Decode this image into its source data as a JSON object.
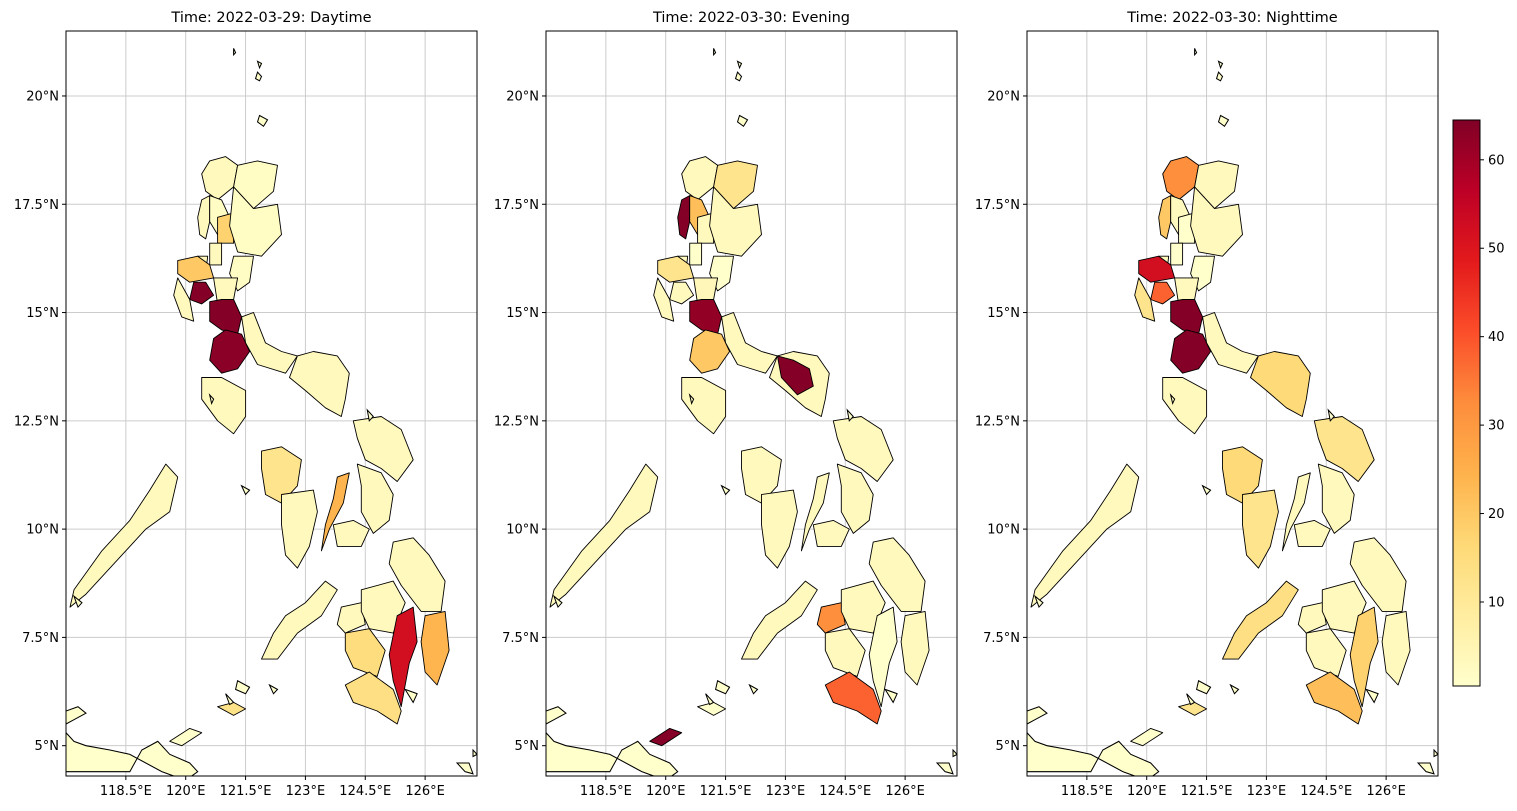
{
  "panels": [
    {
      "title": "Time: 2022-03-29: Daytime",
      "regions": [
        {
          "name": "ilocos-norte",
          "value": 3
        },
        {
          "name": "cagayan-ne",
          "value": 2
        },
        {
          "name": "ilocos-sur",
          "value": 3
        },
        {
          "name": "abra",
          "value": 2
        },
        {
          "name": "la-union",
          "value": 4
        },
        {
          "name": "mountain-prov",
          "value": 18
        },
        {
          "name": "benguet",
          "value": 3
        },
        {
          "name": "pangasinan",
          "value": 20
        },
        {
          "name": "isabela",
          "value": 2
        },
        {
          "name": "aurora",
          "value": 2
        },
        {
          "name": "tarlac",
          "value": 64
        },
        {
          "name": "zambales",
          "value": 3
        },
        {
          "name": "bulacan",
          "value": 64
        },
        {
          "name": "nueva-ecija",
          "value": 3
        },
        {
          "name": "manila-calabarzon",
          "value": 63
        },
        {
          "name": "quezon",
          "value": 3
        },
        {
          "name": "bicol",
          "value": 3
        },
        {
          "name": "mindoro",
          "value": 3
        },
        {
          "name": "panay",
          "value": 12
        },
        {
          "name": "negros",
          "value": 3
        },
        {
          "name": "cebu",
          "value": 24
        },
        {
          "name": "samar",
          "value": 3
        },
        {
          "name": "leyte",
          "value": 3
        },
        {
          "name": "bohol",
          "value": 3
        },
        {
          "name": "palawan",
          "value": 3
        },
        {
          "name": "zamboanga",
          "value": 3
        },
        {
          "name": "lanao",
          "value": 3
        },
        {
          "name": "bukidnon",
          "value": 3
        },
        {
          "name": "cotabato",
          "value": 15
        },
        {
          "name": "davao-city",
          "value": 52
        },
        {
          "name": "davao-oriental",
          "value": 24
        },
        {
          "name": "south-mindanao",
          "value": 14
        },
        {
          "name": "caraga",
          "value": 3
        },
        {
          "name": "sulu",
          "value": 13
        }
      ]
    },
    {
      "title": "Time: 2022-03-30: Evening",
      "regions": [
        {
          "name": "ilocos-norte",
          "value": 3
        },
        {
          "name": "cagayan-ne",
          "value": 12
        },
        {
          "name": "ilocos-sur",
          "value": 64
        },
        {
          "name": "abra",
          "value": 22
        },
        {
          "name": "la-union",
          "value": 3
        },
        {
          "name": "mountain-prov",
          "value": 3
        },
        {
          "name": "pangasinan",
          "value": 12
        },
        {
          "name": "isabela",
          "value": 3
        },
        {
          "name": "tarlac",
          "value": 3
        },
        {
          "name": "zambales",
          "value": 3
        },
        {
          "name": "bulacan",
          "value": 62
        },
        {
          "name": "nueva-ecija",
          "value": 4
        },
        {
          "name": "manila-calabarzon",
          "value": 20
        },
        {
          "name": "quezon",
          "value": 3
        },
        {
          "name": "camarines",
          "value": 64
        },
        {
          "name": "bicol",
          "value": 3
        },
        {
          "name": "mindoro",
          "value": 3
        },
        {
          "name": "panay",
          "value": 3
        },
        {
          "name": "negros",
          "value": 3
        },
        {
          "name": "cebu",
          "value": 3
        },
        {
          "name": "samar",
          "value": 3
        },
        {
          "name": "leyte",
          "value": 3
        },
        {
          "name": "bohol",
          "value": 3
        },
        {
          "name": "palawan",
          "value": 3
        },
        {
          "name": "zamboanga",
          "value": 3
        },
        {
          "name": "lanao",
          "value": 32
        },
        {
          "name": "bukidnon",
          "value": 3
        },
        {
          "name": "cotabato",
          "value": 3
        },
        {
          "name": "south-mindanao",
          "value": 38
        },
        {
          "name": "davao-oriental",
          "value": 3
        },
        {
          "name": "caraga",
          "value": 3
        },
        {
          "name": "tawi-tawi",
          "value": 64
        }
      ]
    },
    {
      "title": "Time: 2022-03-30: Nighttime",
      "regions": [
        {
          "name": "ilocos-norte",
          "value": 32
        },
        {
          "name": "cagayan-ne",
          "value": 3
        },
        {
          "name": "ilocos-sur",
          "value": 20
        },
        {
          "name": "abra",
          "value": 3
        },
        {
          "name": "la-union",
          "value": 3
        },
        {
          "name": "pangasinan",
          "value": 52
        },
        {
          "name": "tarlac",
          "value": 38
        },
        {
          "name": "zambales",
          "value": 12
        },
        {
          "name": "nueva-ecija",
          "value": 3
        },
        {
          "name": "isabela",
          "value": 3
        },
        {
          "name": "bulacan",
          "value": 64
        },
        {
          "name": "manila-calabarzon",
          "value": 64
        },
        {
          "name": "quezon",
          "value": 3
        },
        {
          "name": "bicol",
          "value": 16
        },
        {
          "name": "mindoro",
          "value": 3
        },
        {
          "name": "panay",
          "value": 16
        },
        {
          "name": "negros",
          "value": 12
        },
        {
          "name": "cebu",
          "value": 3
        },
        {
          "name": "samar",
          "value": 12
        },
        {
          "name": "leyte",
          "value": 3
        },
        {
          "name": "bohol",
          "value": 3
        },
        {
          "name": "palawan",
          "value": 3
        },
        {
          "name": "zamboanga",
          "value": 14
        },
        {
          "name": "lanao",
          "value": 3
        },
        {
          "name": "bukidnon",
          "value": 3
        },
        {
          "name": "cotabato",
          "value": 3
        },
        {
          "name": "south-mindanao",
          "value": 22
        },
        {
          "name": "davao-city",
          "value": 18
        },
        {
          "name": "davao-oriental",
          "value": 3
        },
        {
          "name": "caraga",
          "value": 3
        },
        {
          "name": "sulu",
          "value": 12
        }
      ]
    }
  ],
  "axes": {
    "lon_ticks": [
      "118.5°E",
      "120°E",
      "121.5°E",
      "123°E",
      "124.5°E",
      "126°E"
    ],
    "lat_ticks": [
      "20°N",
      "17.5°N",
      "15°N",
      "12.5°N",
      "10°N",
      "7.5°N",
      "5°N"
    ]
  },
  "colorbar": {
    "ticks": [
      "10",
      "20",
      "30",
      "40",
      "50",
      "60"
    ],
    "min": 0.5,
    "max": 64.5,
    "colormap": "YlOrRd"
  },
  "colors": {
    "land_base": "#ffffcc",
    "outline": "#000000",
    "grid": "#cccccc"
  }
}
